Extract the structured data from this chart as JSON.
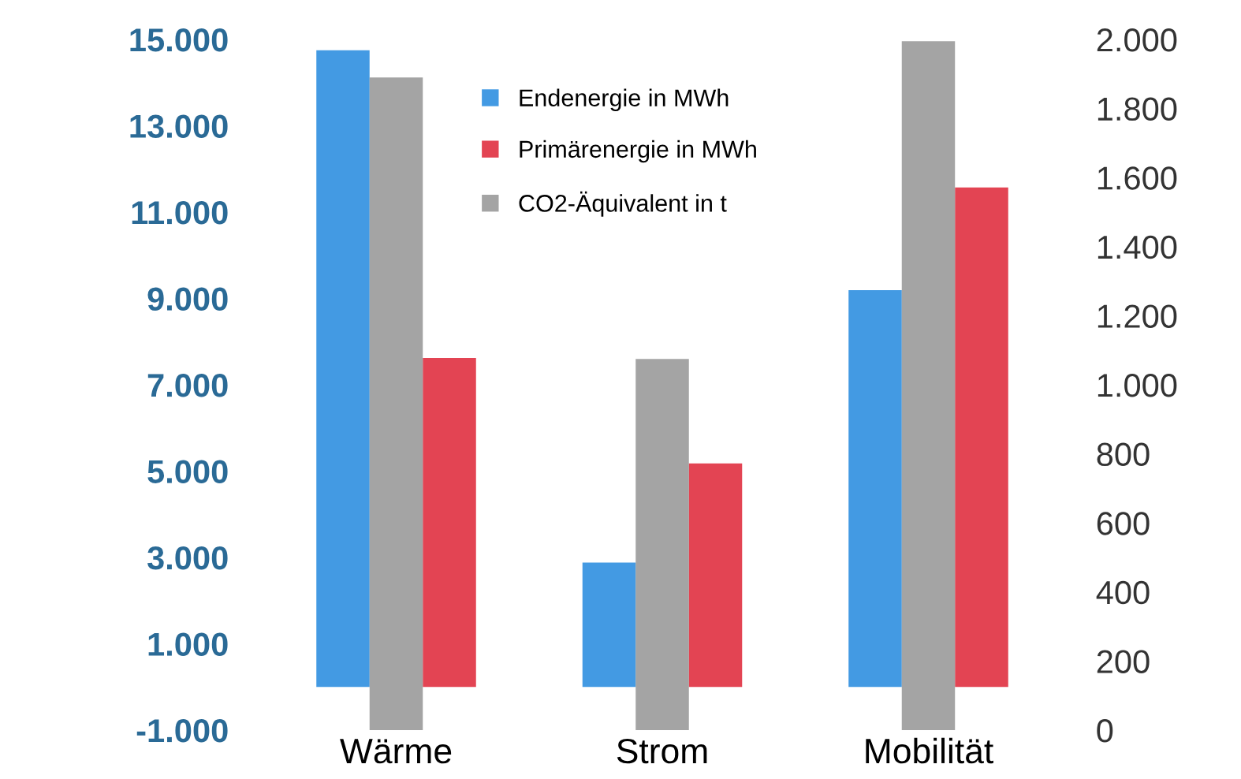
{
  "chart_data": {
    "type": "bar",
    "categories": [
      "Wärme",
      "Strom",
      "Mobilität"
    ],
    "series": [
      {
        "name": "Endenergie in MWh",
        "color": "#2f8fe0",
        "values": [
          14750,
          2880,
          9190
        ]
      },
      {
        "name": "Primärenergie in MWh",
        "color": "#e03040",
        "values": [
          7620,
          5180,
          11570
        ]
      },
      {
        "name": "CO2-Äquivalent in t",
        "color": "#858585",
        "values": [
          1890,
          1075,
          1995
        ],
        "axis": "y2"
      }
    ],
    "ylim": [
      -1000,
      15000
    ],
    "yticks": [
      {
        "value": -1000,
        "label": "-1.000"
      },
      {
        "value": 1000,
        "label": "1.000"
      },
      {
        "value": 3000,
        "label": "3.000"
      },
      {
        "value": 5000,
        "label": "5.000"
      },
      {
        "value": 7000,
        "label": "7.000"
      },
      {
        "value": 9000,
        "label": "9.000"
      },
      {
        "value": 11000,
        "label": "11.000"
      },
      {
        "value": 13000,
        "label": "13.000"
      },
      {
        "value": 15000,
        "label": "15.000"
      }
    ],
    "y2lim": [
      0,
      2000
    ],
    "y2ticks": [
      0,
      200,
      400,
      600,
      800,
      {
        "value": 1000,
        "label": "1.000"
      },
      {
        "value": 1200,
        "label": "1.200"
      },
      {
        "value": 1400,
        "label": "1.400"
      },
      {
        "value": 1600,
        "label": "1.600"
      },
      {
        "value": 1800,
        "label": "1.800"
      },
      {
        "value": 2000,
        "label": "2.000"
      }
    ],
    "legend": "top",
    "grid": false
  }
}
